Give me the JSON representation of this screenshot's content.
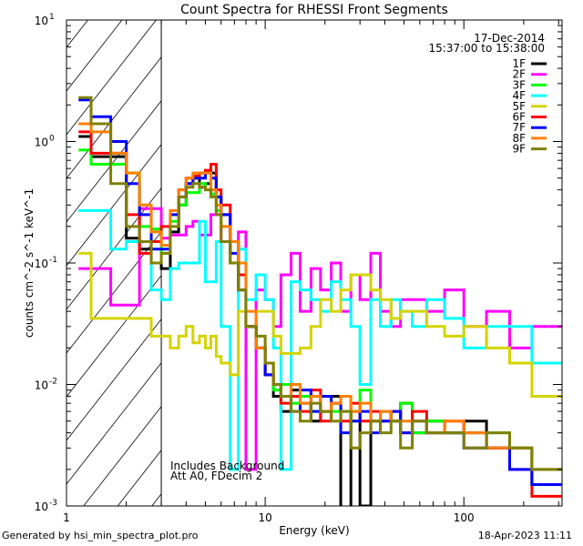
{
  "chart_data": {
    "type": "line",
    "title": "Count Spectra for RHESSI Front Segments",
    "xlabel": "Energy (keV)",
    "ylabel": "counts cm^-2 s^-1 keV^-1",
    "xscale": "log",
    "yscale": "log",
    "xlim": [
      1,
      312
    ],
    "ylim": [
      0.001,
      10
    ],
    "x_tick_labels": [
      {
        "value": 1,
        "label": "1"
      },
      {
        "value": 10,
        "label": "10"
      },
      {
        "value": 100,
        "label": "100"
      }
    ],
    "y_tick_labels": [
      {
        "value": 10,
        "base": "10",
        "exp": "1"
      },
      {
        "value": 1,
        "base": "10",
        "exp": "0"
      },
      {
        "value": 0.1,
        "base": "10",
        "exp": "-1"
      },
      {
        "value": 0.01,
        "base": "10",
        "exp": "-2"
      },
      {
        "value": 0.001,
        "base": "10",
        "exp": "-3"
      }
    ],
    "hatched_region_keV": [
      1,
      3
    ],
    "date": "17-Dec-2014",
    "time_range": "15:37:00 to 15:38:00",
    "annotations": [
      "Includes Background",
      "Att A0, FDecim 2"
    ],
    "legend_placement": "top-right",
    "energy_edges": [
      1.15,
      1.33,
      1.67,
      2,
      2.33,
      2.67,
      3,
      3.33,
      3.67,
      4,
      4.33,
      4.67,
      5,
      5.33,
      5.67,
      6,
      6.67,
      7.33,
      8,
      9,
      10,
      11,
      12,
      13.5,
      15,
      17,
      19,
      21.5,
      24,
      27,
      30,
      34,
      38,
      43,
      48,
      55,
      65,
      80,
      100,
      130,
      170,
      220,
      310
    ],
    "series": [
      {
        "name": "1F",
        "color": "#000000",
        "values": [
          1.1,
          0.75,
          0.75,
          0.16,
          0.13,
          0.1,
          0.09,
          0.18,
          0.3,
          0.45,
          0.5,
          0.42,
          0.45,
          0.55,
          0.35,
          0.25,
          0.15,
          0.06,
          0.03,
          0.02,
          0.012,
          0.008,
          0.006,
          0.009,
          0.007,
          0.005,
          0.006,
          0.008,
          0.0008,
          0.006,
          0.001,
          0.005,
          0.006,
          0.005,
          0.007,
          0.004,
          0.005,
          0.004,
          0.005,
          0.003,
          0.003,
          0.0015
        ]
      },
      {
        "name": "2F",
        "color": "#ff00ff",
        "values": [
          0.09,
          0.09,
          0.045,
          0.045,
          0.28,
          0.28,
          0.16,
          0.17,
          0.17,
          0.2,
          0.22,
          0.17,
          0.17,
          0.25,
          0.25,
          0.15,
          0.1,
          0.18,
          0.002,
          0.06,
          0.05,
          0.03,
          0.08,
          0.12,
          0.04,
          0.09,
          0.06,
          0.1,
          0.04,
          0.08,
          0.05,
          0.12,
          0.04,
          0.03,
          0.05,
          0.05,
          0.04,
          0.06,
          0.03,
          0.04,
          0.02,
          0.03
        ]
      },
      {
        "name": "3F",
        "color": "#00ff00",
        "values": [
          0.85,
          0.65,
          0.65,
          0.55,
          0.2,
          0.19,
          0.12,
          0.22,
          0.3,
          0.38,
          0.38,
          0.45,
          0.4,
          0.37,
          0.27,
          0.2,
          0.1,
          0.06,
          0.03,
          0.02,
          0.015,
          0.009,
          0.01,
          0.007,
          0.008,
          0.006,
          0.008,
          0.006,
          0.006,
          0.005,
          0.009,
          0.005,
          0.006,
          0.005,
          0.007,
          0.004,
          0.005,
          0.004,
          0.004,
          0.004,
          0.003,
          0.002
        ]
      },
      {
        "name": "4F",
        "color": "#00ffff",
        "values": [
          0.27,
          0.27,
          0.13,
          0.15,
          0.15,
          0.06,
          0.05,
          0.09,
          0.1,
          0.1,
          0.1,
          0.22,
          0.07,
          0.07,
          0.15,
          0.03,
          0.002,
          0.13,
          0.05,
          0.08,
          0.05,
          0.02,
          0.002,
          0.07,
          0.06,
          0.05,
          0.04,
          0.07,
          0.05,
          0.03,
          0.01,
          0.05,
          0.03,
          0.05,
          0.04,
          0.03,
          0.05,
          0.035,
          0.02,
          0.03,
          0.03,
          0.015
        ]
      },
      {
        "name": "5F",
        "color": "#d4d400",
        "values": [
          0.12,
          0.035,
          0.035,
          0.035,
          0.035,
          0.025,
          0.025,
          0.02,
          0.025,
          0.03,
          0.022,
          0.025,
          0.02,
          0.025,
          0.017,
          0.015,
          0.012,
          0.04,
          0.03,
          0.04,
          0.04,
          0.025,
          0.018,
          0.018,
          0.02,
          0.03,
          0.05,
          0.04,
          0.06,
          0.08,
          0.08,
          0.06,
          0.05,
          0.035,
          0.04,
          0.04,
          0.03,
          0.025,
          0.03,
          0.02,
          0.015,
          0.008
        ]
      },
      {
        "name": "6F",
        "color": "#ff0000",
        "values": [
          1.2,
          0.8,
          0.8,
          0.25,
          0.12,
          0.15,
          0.2,
          0.25,
          0.4,
          0.5,
          0.52,
          0.55,
          0.58,
          0.65,
          0.4,
          0.3,
          0.15,
          0.08,
          0.03,
          0.02,
          0.012,
          0.01,
          0.007,
          0.008,
          0.006,
          0.009,
          0.005,
          0.007,
          0.005,
          0.007,
          0.005,
          0.006,
          0.005,
          0.006,
          0.004,
          0.006,
          0.004,
          0.005,
          0.004,
          0.003,
          0.002,
          0.0012
        ]
      },
      {
        "name": "7F",
        "color": "#0000ff",
        "values": [
          2.2,
          1.6,
          1.0,
          0.45,
          0.25,
          0.13,
          0.13,
          0.25,
          0.35,
          0.45,
          0.5,
          0.5,
          0.55,
          0.5,
          0.35,
          0.25,
          0.12,
          0.06,
          0.03,
          0.02,
          0.012,
          0.01,
          0.008,
          0.006,
          0.009,
          0.006,
          0.008,
          0.007,
          0.004,
          0.005,
          0.006,
          0.004,
          0.005,
          0.006,
          0.004,
          0.005,
          0.004,
          0.004,
          0.003,
          0.003,
          0.002,
          0.0015
        ]
      },
      {
        "name": "8F",
        "color": "#ff8000",
        "values": [
          1.4,
          1.2,
          0.8,
          0.55,
          0.3,
          0.18,
          0.14,
          0.27,
          0.4,
          0.5,
          0.55,
          0.55,
          0.55,
          0.4,
          0.3,
          0.2,
          0.15,
          0.1,
          0.04,
          0.02,
          0.015,
          0.01,
          0.008,
          0.01,
          0.007,
          0.008,
          0.006,
          0.007,
          0.008,
          0.006,
          0.007,
          0.005,
          0.006,
          0.005,
          0.005,
          0.005,
          0.004,
          0.005,
          0.004,
          0.003,
          0.003,
          0.002
        ]
      },
      {
        "name": "9F",
        "color": "#808000",
        "values": [
          2.3,
          1.4,
          0.45,
          0.2,
          0.15,
          0.1,
          0.12,
          0.2,
          0.35,
          0.42,
          0.45,
          0.42,
          0.4,
          0.35,
          0.25,
          0.15,
          0.1,
          0.06,
          0.03,
          0.025,
          0.015,
          0.01,
          0.008,
          0.006,
          0.005,
          0.007,
          0.006,
          0.005,
          0.006,
          0.003,
          0.004,
          0.005,
          0.004,
          0.005,
          0.003,
          0.005,
          0.004,
          0.004,
          0.003,
          0.004,
          0.003,
          0.002
        ]
      }
    ]
  },
  "footer": {
    "generated_by": "Generated by hsi_min_spectra_plot.pro",
    "timestamp": "18-Apr-2023 11:11"
  }
}
